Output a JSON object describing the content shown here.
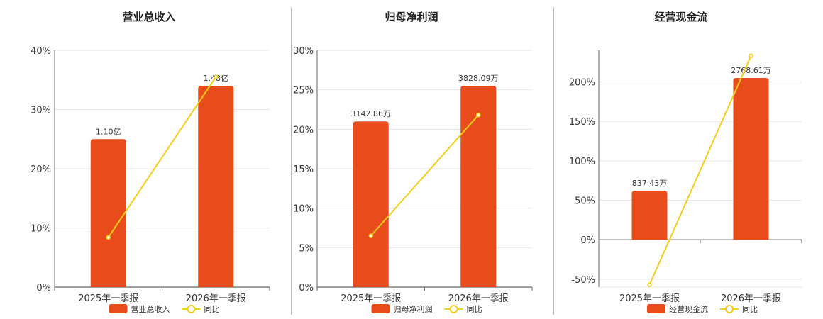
{
  "colors": {
    "bar": "#E84C1A",
    "line": "#F2CD1B",
    "grid": "#e6e6e6",
    "axis": "#666666"
  },
  "chart_data": [
    {
      "type": "bar",
      "title": "营业总收入",
      "categories": [
        "2025年一季报",
        "2026年一季报"
      ],
      "series": [
        {
          "name": "营业总收入",
          "kind": "bar",
          "values": [
            25,
            34
          ],
          "labels": [
            "1.10亿",
            "1.48亿"
          ]
        },
        {
          "name": "同比",
          "kind": "line",
          "values": [
            8.4,
            35.5
          ]
        }
      ],
      "yaxis": {
        "min": 0,
        "max": 40,
        "step": 10,
        "unit": "%"
      }
    },
    {
      "type": "bar",
      "title": "归母净利润",
      "categories": [
        "2025年一季报",
        "2026年一季报"
      ],
      "series": [
        {
          "name": "归母净利润",
          "kind": "bar",
          "values": [
            21,
            25.5
          ],
          "labels": [
            "3142.86万",
            "3828.09万"
          ]
        },
        {
          "name": "同比",
          "kind": "line",
          "values": [
            6.5,
            21.8
          ]
        }
      ],
      "yaxis": {
        "min": 0,
        "max": 30,
        "step": 5,
        "unit": "%"
      }
    },
    {
      "type": "bar",
      "title": "经营现金流",
      "categories": [
        "2025年一季报",
        "2026年一季报"
      ],
      "series": [
        {
          "name": "经营现金流",
          "kind": "bar",
          "values": [
            62,
            205
          ],
          "labels": [
            "837.43万",
            "2768.61万"
          ]
        },
        {
          "name": "同比",
          "kind": "line",
          "values": [
            -57,
            233
          ]
        }
      ],
      "yaxis": {
        "min": -60,
        "max": 240,
        "step": 50,
        "unit": "%"
      }
    }
  ]
}
